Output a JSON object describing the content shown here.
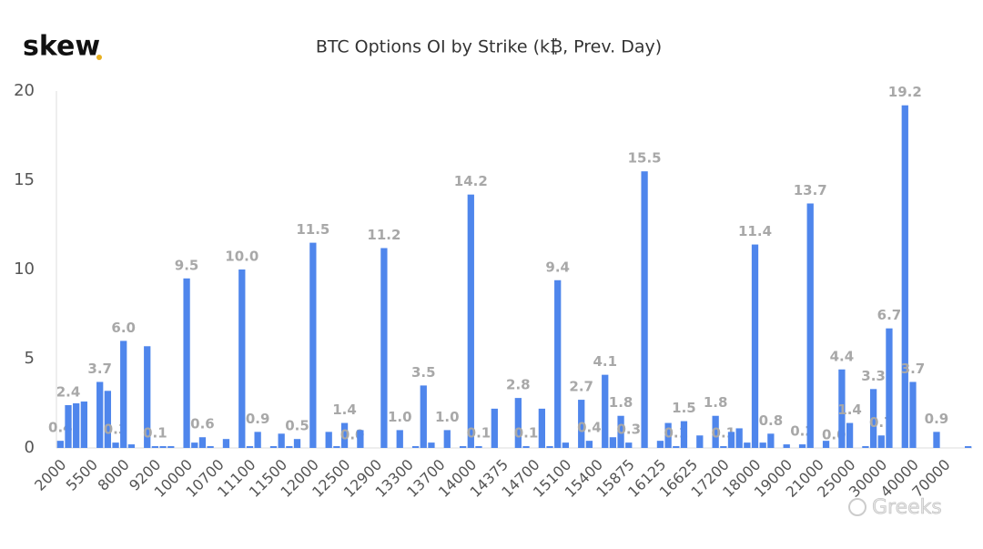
{
  "logo": "skew",
  "watermark": "Greeks",
  "chart_data": {
    "type": "bar",
    "title": "BTC Options OI by Strike (k₿, Prev. Day)",
    "color": "#4f86ec",
    "categories": [
      "2000",
      null,
      null,
      null,
      "5500",
      null,
      null,
      null,
      "8000",
      null,
      null,
      null,
      "9200",
      null,
      null,
      null,
      "10000",
      null,
      null,
      null,
      "10700",
      null,
      null,
      null,
      "11100",
      null,
      null,
      null,
      "11500",
      null,
      null,
      null,
      "12000",
      null,
      null,
      null,
      "12500",
      null,
      null,
      null,
      "12900",
      null,
      null,
      null,
      "13300",
      null,
      null,
      null,
      "13700",
      null,
      null,
      null,
      "14000",
      null,
      null,
      null,
      "14375",
      null,
      null,
      null,
      "14700",
      null,
      null,
      null,
      "15100",
      null,
      null,
      null,
      "15400",
      null,
      null,
      null,
      "15875",
      null,
      null,
      null,
      "16125",
      null,
      null,
      null,
      "16625",
      null,
      null,
      null,
      "17200",
      null,
      null,
      null,
      "18000",
      null,
      null,
      null,
      "19000",
      null,
      null,
      null,
      "21000",
      null,
      null,
      null,
      "25000",
      null,
      null,
      null,
      "30000",
      null,
      null,
      null,
      "40000",
      null,
      null,
      null,
      "70000",
      null,
      null,
      null
    ],
    "values": [
      0.4,
      2.4,
      2.5,
      2.6,
      0.0,
      3.7,
      3.2,
      0.3,
      6.0,
      0.2,
      0.0,
      5.7,
      0.1,
      0.1,
      0.1,
      0.0,
      9.5,
      0.3,
      0.6,
      0.1,
      0.0,
      0.5,
      0.0,
      10.0,
      0.1,
      0.9,
      0.0,
      0.1,
      0.8,
      0.1,
      0.5,
      0.0,
      11.5,
      0.0,
      0.9,
      0.1,
      1.4,
      0.0,
      1.0,
      0.0,
      0.0,
      11.2,
      0.0,
      1.0,
      0.0,
      0.1,
      3.5,
      0.3,
      0.0,
      1.0,
      0.0,
      0.1,
      14.2,
      0.1,
      0.0,
      2.2,
      0.0,
      0.0,
      2.8,
      0.1,
      0.0,
      2.2,
      0.1,
      9.4,
      0.3,
      0.0,
      2.7,
      0.4,
      0.0,
      4.1,
      0.6,
      1.8,
      0.3,
      0.0,
      15.5,
      0.0,
      0.4,
      1.4,
      0.1,
      1.5,
      0.0,
      0.7,
      0.0,
      1.8,
      0.1,
      0.9,
      1.1,
      0.3,
      11.4,
      0.3,
      0.8,
      0.0,
      0.2,
      0.0,
      0.2,
      13.7,
      0.0,
      0.4,
      0.0,
      4.4,
      1.4,
      0.0,
      0.1,
      3.3,
      0.7,
      6.7,
      0.0,
      19.2,
      3.7,
      0.0,
      0.0,
      0.9,
      0.0,
      0.0,
      0.0,
      0.1
    ],
    "value_labels": [
      "0.4",
      "2.4",
      null,
      null,
      null,
      "3.7",
      null,
      "0.3",
      "6.0",
      null,
      null,
      null,
      "0.1",
      null,
      null,
      null,
      "9.5",
      null,
      "0.6",
      null,
      null,
      null,
      null,
      "10.0",
      null,
      "0.9",
      null,
      null,
      null,
      null,
      "0.5",
      null,
      "11.5",
      null,
      null,
      null,
      "1.4",
      "0.0",
      null,
      null,
      null,
      "11.2",
      null,
      "1.0",
      null,
      null,
      "3.5",
      null,
      null,
      "1.0",
      null,
      null,
      "14.2",
      "0.1",
      null,
      null,
      null,
      null,
      "2.8",
      "0.1",
      null,
      null,
      null,
      "9.4",
      null,
      null,
      "2.7",
      "0.4",
      null,
      "4.1",
      null,
      "1.8",
      "0.3",
      null,
      "15.5",
      null,
      null,
      null,
      "0.1",
      "1.5",
      null,
      null,
      null,
      "1.8",
      "0.1",
      null,
      null,
      null,
      "11.4",
      null,
      "0.8",
      null,
      null,
      null,
      "0.2",
      "13.7",
      null,
      null,
      "0.0",
      "4.4",
      "1.4",
      null,
      null,
      "3.3",
      "0.7",
      "6.7",
      null,
      "19.2",
      "3.7",
      null,
      null,
      "0.9",
      null,
      null,
      null,
      null
    ],
    "ylim": [
      0,
      20
    ],
    "yticks": [
      0,
      5,
      10,
      15,
      20
    ],
    "grid": false
  }
}
